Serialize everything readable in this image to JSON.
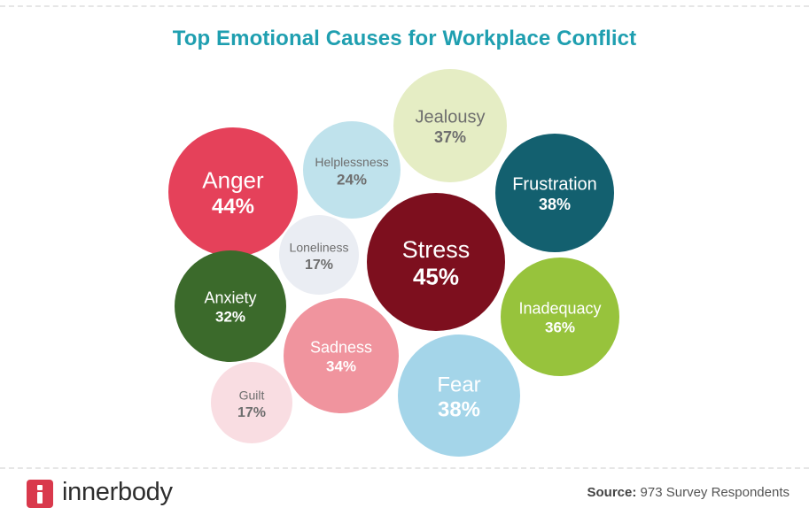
{
  "chart_data": {
    "type": "bubble",
    "title": "Top Emotional Causes for Workplace Conflict",
    "unit": "%",
    "categories": [
      "Anger",
      "Helplessness",
      "Jealousy",
      "Frustration",
      "Loneliness",
      "Stress",
      "Anxiety",
      "Inadequacy",
      "Sadness",
      "Fear",
      "Guilt"
    ],
    "values": [
      44,
      24,
      37,
      38,
      17,
      45,
      32,
      36,
      34,
      38,
      17
    ],
    "colors": {
      "Anger": "#e5415a",
      "Helplessness": "#bfe2ec",
      "Jealousy": "#e5edc4",
      "Frustration": "#13606f",
      "Loneliness": "#eaedf3",
      "Stress": "#7d0f1e",
      "Anxiety": "#3b6a2b",
      "Inadequacy": "#97c33c",
      "Sadness": "#f0949e",
      "Fear": "#a4d5e9",
      "Guilt": "#f9dde2"
    }
  },
  "brand": {
    "name": "innerbody",
    "accent": "#d9394c"
  },
  "source": {
    "label": "Source:",
    "text": "973 Survey Respondents"
  }
}
